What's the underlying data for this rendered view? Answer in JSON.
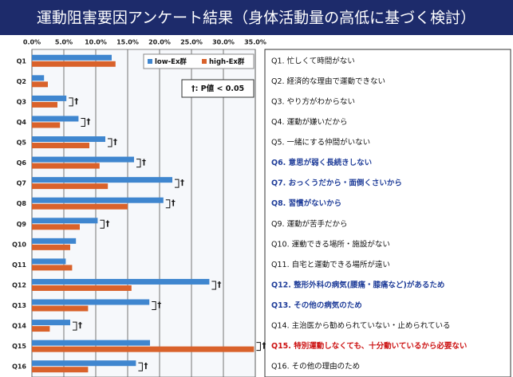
{
  "chart_data": {
    "type": "hbar",
    "title": "運動阻害要因アンケート結果（身体活動量の高低に基づく検討）",
    "categories": [
      "Q1",
      "Q2",
      "Q3",
      "Q4",
      "Q5",
      "Q6",
      "Q7",
      "Q8",
      "Q9",
      "Q10",
      "Q11",
      "Q12",
      "Q13",
      "Q14",
      "Q15",
      "Q16"
    ],
    "series": [
      {
        "name": "low-Ex群",
        "color": "#3f86cf",
        "values": [
          12.5,
          1.9,
          5.4,
          7.3,
          11.5,
          16.0,
          22.0,
          20.6,
          10.3,
          6.9,
          5.3,
          27.8,
          18.4,
          6.0,
          18.5,
          16.3
        ]
      },
      {
        "name": "high-Ex群",
        "color": "#d9622b",
        "values": [
          13.1,
          2.5,
          4.0,
          4.4,
          9.0,
          10.6,
          11.9,
          15.0,
          7.5,
          6.0,
          6.3,
          15.6,
          8.8,
          2.8,
          34.8,
          8.8
        ]
      }
    ],
    "significance": [
      null,
      null,
      "†",
      "†",
      "†",
      "†",
      "†",
      "†",
      "†",
      null,
      null,
      "†",
      "†",
      "†",
      "†",
      "†"
    ],
    "annotation": "†: P値 < 0.05",
    "xlim": [
      0,
      35
    ],
    "xticks": [
      {
        "value": 0,
        "label": "0.0%"
      },
      {
        "value": 5,
        "label": "5.0%"
      },
      {
        "value": 10,
        "label": "10.0%"
      },
      {
        "value": 15,
        "label": "15.0%"
      },
      {
        "value": 20,
        "label": "20.0%"
      },
      {
        "value": 25,
        "label": "25.0%"
      },
      {
        "value": 30,
        "label": "30.0%"
      },
      {
        "value": 35,
        "label": "35.0%"
      }
    ],
    "grid": true,
    "legend": "top-right",
    "questions": [
      {
        "text": "Q1. 忙しくて時間がない",
        "color": "#111111"
      },
      {
        "text": "Q2. 経済的な理由で運動できない",
        "color": "#111111"
      },
      {
        "text": "Q3. やり方がわからない",
        "color": "#111111"
      },
      {
        "text": "Q4. 運動が嫌いだから",
        "color": "#111111"
      },
      {
        "text": "Q5. 一緒にする仲間がいない",
        "color": "#111111"
      },
      {
        "text": "Q6. 意思が弱く長続きしない",
        "color": "#1f3d99"
      },
      {
        "text": "Q7. おっくうだから・面倒くさいから",
        "color": "#1f3d99"
      },
      {
        "text": "Q8. 習慣がないから",
        "color": "#1f3d99"
      },
      {
        "text": "Q9. 運動が苦手だから",
        "color": "#111111"
      },
      {
        "text": "Q10. 運動できる場所・施設がない",
        "color": "#111111"
      },
      {
        "text": "Q11. 自宅と運動できる場所が遠い",
        "color": "#111111"
      },
      {
        "text": "Q12. 整形外科の病気(腰痛・膝痛など)があるため",
        "color": "#1f3d99"
      },
      {
        "text": "Q13. その他の病気のため",
        "color": "#1f3d99"
      },
      {
        "text": "Q14. 主治医から勧められていない・止められている",
        "color": "#111111"
      },
      {
        "text": "Q15. 特別運動しなくても、十分動いているから必要ない",
        "color": "#cc1111"
      },
      {
        "text": "Q16. その他の理由のため",
        "color": "#111111"
      }
    ]
  }
}
